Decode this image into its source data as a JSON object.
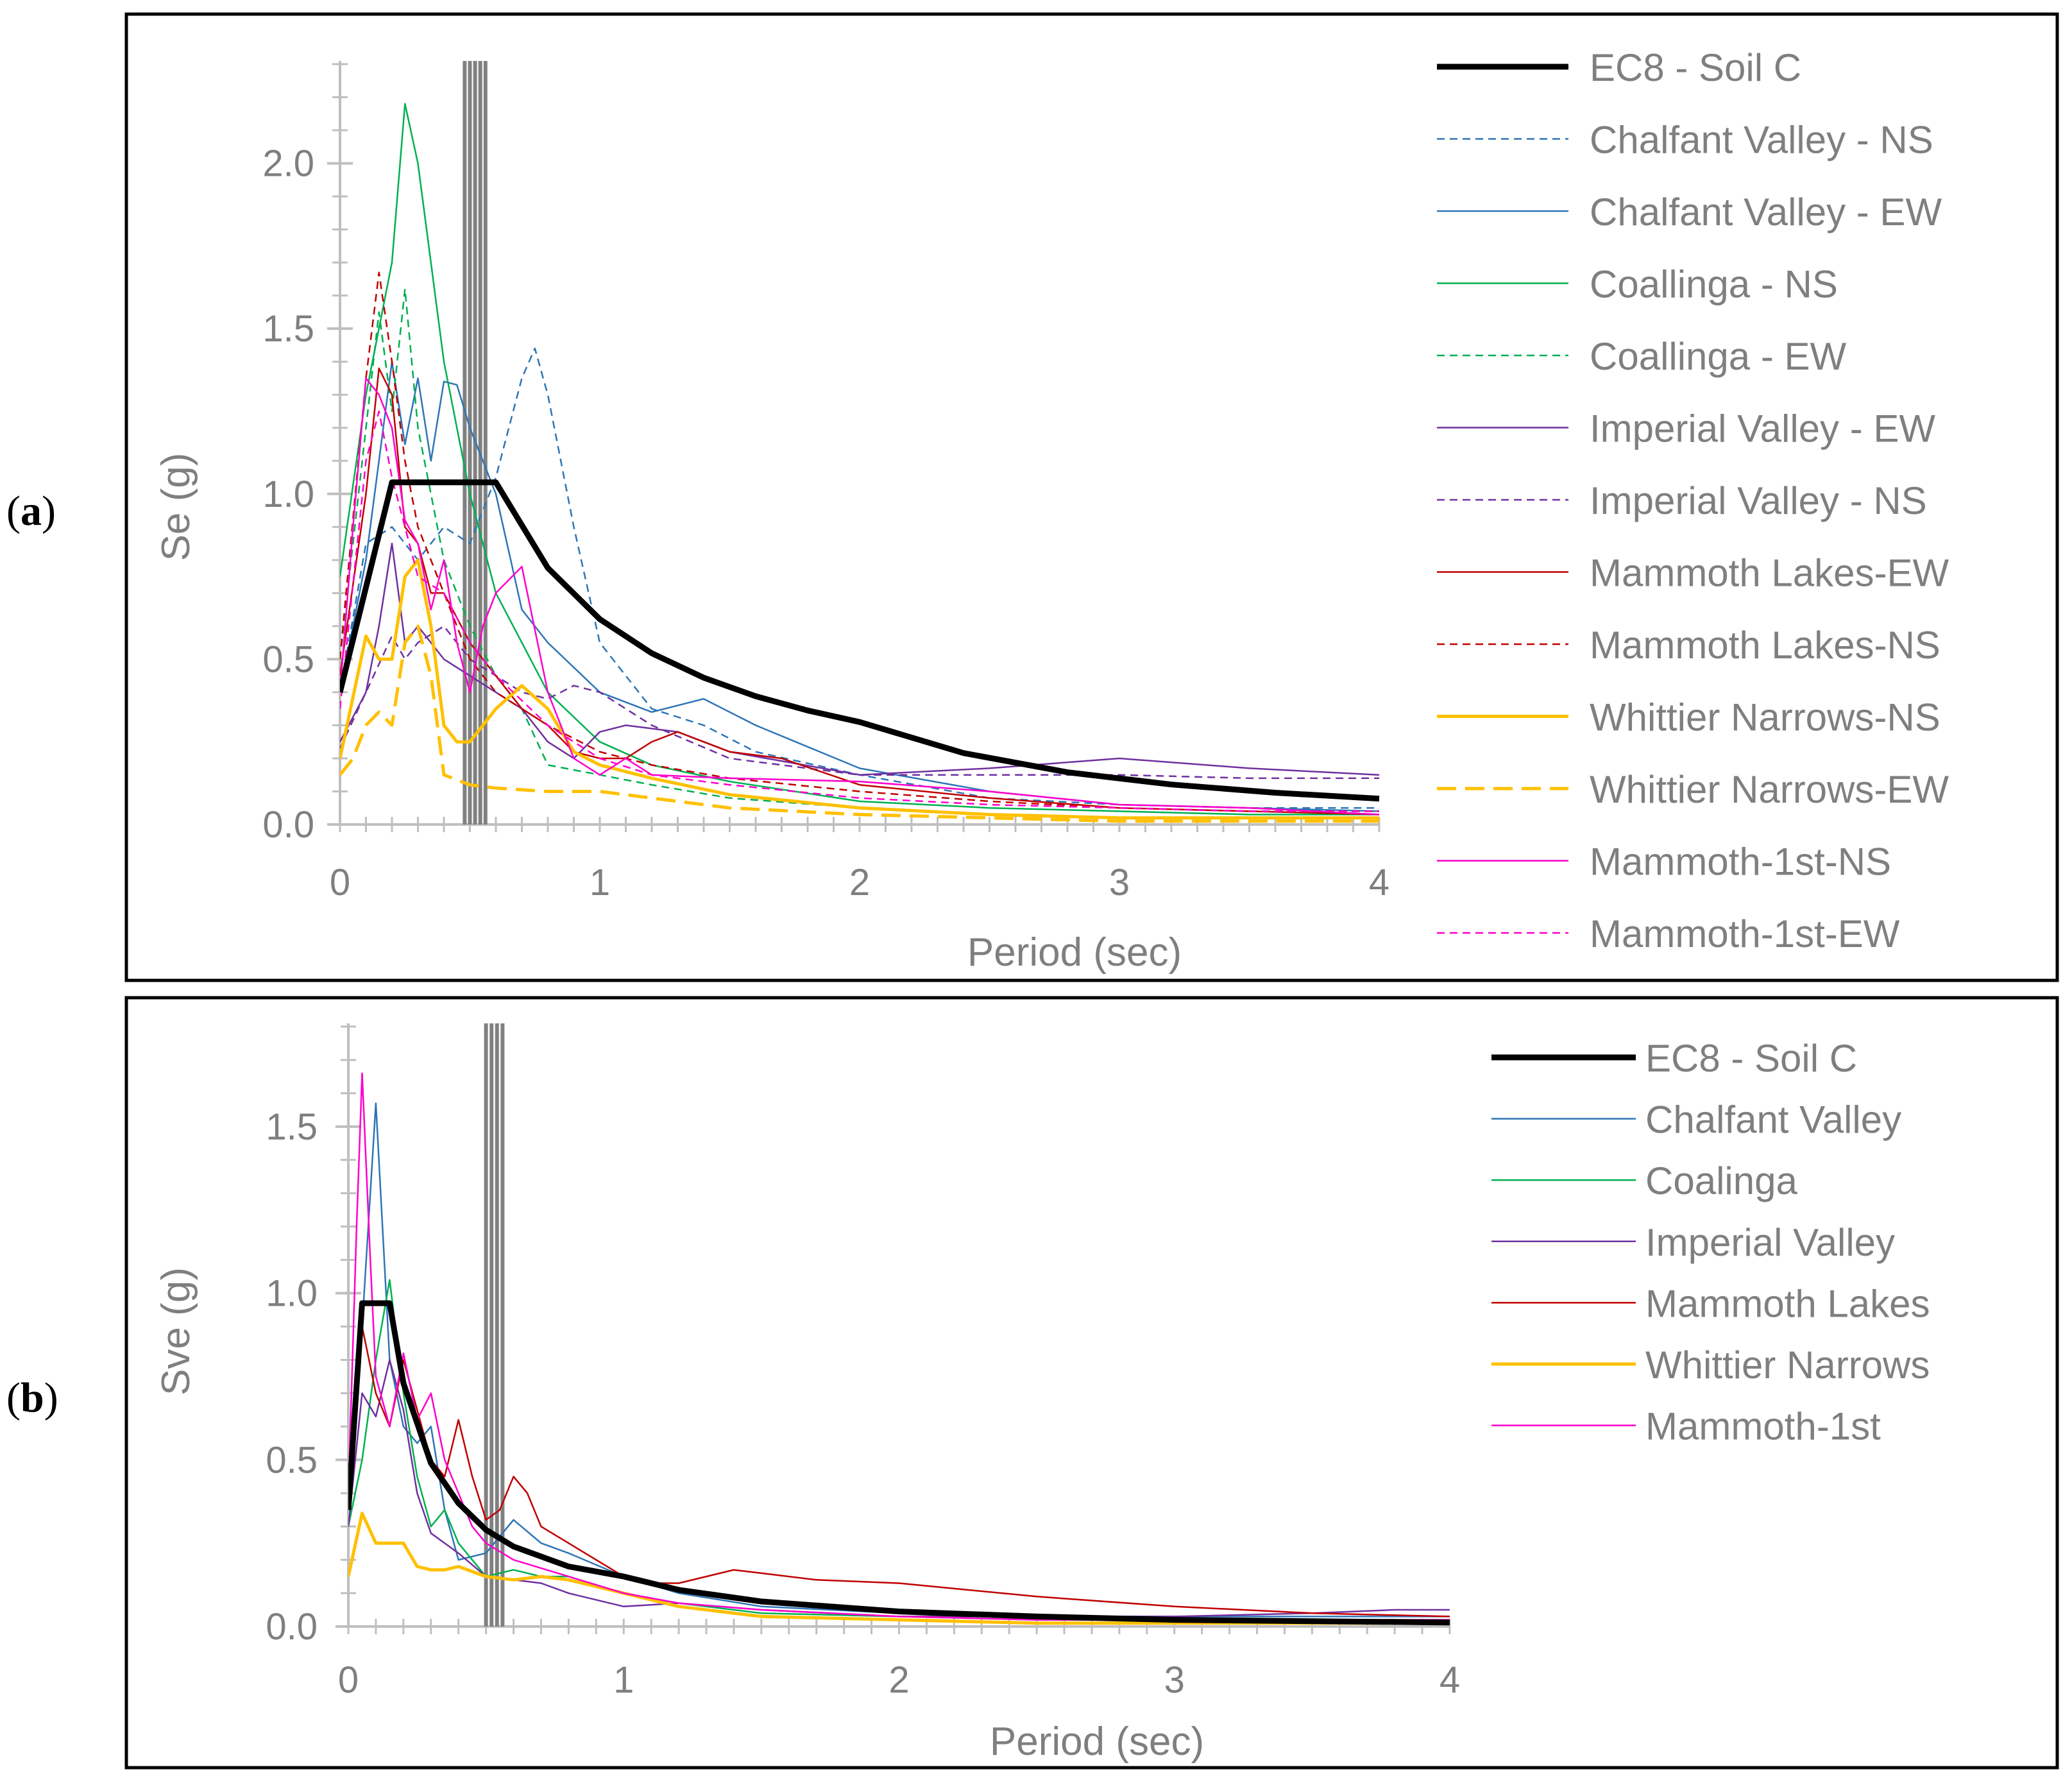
{
  "chart_data": [
    {
      "panel": "(a)",
      "type": "line",
      "xlabel": "Period (sec)",
      "ylabel": "Se (g)",
      "xlim": [
        0,
        4
      ],
      "ylim": [
        0,
        2.3
      ],
      "xticks": [
        0,
        1,
        2,
        3,
        4
      ],
      "yticks": [
        "0.0",
        "0.5",
        "1.0",
        "1.5",
        "2.0"
      ],
      "period_markers": [
        0.48,
        0.5,
        0.52,
        0.54,
        0.56
      ],
      "legend": "right",
      "series": [
        {
          "name": "EC8 - Soil C",
          "color": "#000000",
          "dash": "solid",
          "width": "bold",
          "x": [
            0,
            0.2,
            0.4,
            0.6,
            0.8,
            1.0,
            1.2,
            1.4,
            1.6,
            1.8,
            2.0,
            2.4,
            2.8,
            3.2,
            3.6,
            4.0
          ],
          "y": [
            0.4,
            1.035,
            1.035,
            1.035,
            0.776,
            0.621,
            0.518,
            0.444,
            0.388,
            0.345,
            0.31,
            0.216,
            0.158,
            0.121,
            0.096,
            0.078
          ]
        },
        {
          "name": "Chalfant Valley - NS",
          "color": "#2e75b6",
          "dash": "dashed",
          "width": "thin",
          "x": [
            0,
            0.1,
            0.2,
            0.3,
            0.4,
            0.5,
            0.6,
            0.7,
            0.75,
            0.8,
            0.9,
            1.0,
            1.2,
            1.4,
            1.6,
            2.0,
            2.5,
            3.0,
            3.5,
            4.0
          ],
          "y": [
            0.4,
            0.85,
            0.9,
            0.8,
            0.9,
            0.85,
            1.05,
            1.35,
            1.44,
            1.3,
            0.9,
            0.55,
            0.35,
            0.3,
            0.22,
            0.15,
            0.08,
            0.06,
            0.05,
            0.05
          ]
        },
        {
          "name": "Chalfant Valley - EW",
          "color": "#2e75b6",
          "dash": "solid",
          "width": "thin",
          "x": [
            0,
            0.1,
            0.2,
            0.25,
            0.3,
            0.35,
            0.4,
            0.45,
            0.5,
            0.6,
            0.7,
            0.8,
            1.0,
            1.2,
            1.4,
            1.6,
            2.0,
            2.5,
            3.0,
            3.5,
            4.0
          ],
          "y": [
            0.4,
            0.8,
            1.4,
            1.15,
            1.35,
            1.1,
            1.34,
            1.33,
            1.2,
            1.0,
            0.65,
            0.55,
            0.4,
            0.34,
            0.38,
            0.3,
            0.17,
            0.1,
            0.06,
            0.05,
            0.04
          ]
        },
        {
          "name": "Coallinga - NS",
          "color": "#00b050",
          "dash": "solid",
          "width": "thin",
          "x": [
            0,
            0.1,
            0.2,
            0.25,
            0.3,
            0.4,
            0.5,
            0.6,
            0.7,
            0.8,
            1.0,
            1.2,
            1.5,
            2.0,
            2.5,
            3.0,
            3.5,
            4.0
          ],
          "y": [
            0.75,
            1.3,
            1.7,
            2.18,
            2.0,
            1.4,
            1.0,
            0.7,
            0.55,
            0.4,
            0.25,
            0.18,
            0.13,
            0.07,
            0.05,
            0.04,
            0.03,
            0.03
          ]
        },
        {
          "name": "Coallinga - EW",
          "color": "#00b050",
          "dash": "dashed",
          "width": "thin",
          "x": [
            0,
            0.1,
            0.15,
            0.2,
            0.25,
            0.3,
            0.4,
            0.5,
            0.6,
            0.7,
            0.8,
            1.0,
            1.2,
            1.5,
            2.0,
            2.5,
            3.0,
            3.5,
            4.0
          ],
          "y": [
            0.5,
            1.2,
            1.55,
            1.25,
            1.62,
            1.2,
            0.8,
            0.6,
            0.45,
            0.35,
            0.18,
            0.15,
            0.12,
            0.08,
            0.05,
            0.03,
            0.02,
            0.02,
            0.02
          ]
        },
        {
          "name": "Imperial Valley - EW",
          "color": "#7030a0",
          "dash": "solid",
          "width": "thin",
          "x": [
            0,
            0.1,
            0.15,
            0.2,
            0.25,
            0.3,
            0.4,
            0.5,
            0.6,
            0.7,
            0.8,
            0.9,
            1.0,
            1.1,
            1.3,
            1.5,
            2.0,
            2.5,
            3.0,
            3.5,
            4.0
          ],
          "y": [
            0.25,
            0.4,
            0.6,
            0.85,
            0.55,
            0.6,
            0.5,
            0.45,
            0.4,
            0.35,
            0.25,
            0.2,
            0.28,
            0.3,
            0.28,
            0.22,
            0.15,
            0.17,
            0.2,
            0.17,
            0.15
          ]
        },
        {
          "name": "Imperial Valley - NS",
          "color": "#7030a0",
          "dash": "dashed",
          "width": "thin",
          "x": [
            0,
            0.1,
            0.2,
            0.25,
            0.3,
            0.4,
            0.5,
            0.6,
            0.7,
            0.8,
            0.9,
            1.0,
            1.2,
            1.5,
            2.0,
            2.5,
            3.0,
            3.5,
            4.0
          ],
          "y": [
            0.23,
            0.4,
            0.57,
            0.5,
            0.55,
            0.6,
            0.5,
            0.45,
            0.4,
            0.38,
            0.42,
            0.4,
            0.3,
            0.2,
            0.15,
            0.15,
            0.15,
            0.14,
            0.14
          ]
        },
        {
          "name": "Mammoth Lakes-EW",
          "color": "#c00000",
          "dash": "solid",
          "width": "thin",
          "x": [
            0,
            0.1,
            0.15,
            0.2,
            0.25,
            0.3,
            0.35,
            0.4,
            0.5,
            0.6,
            0.7,
            0.8,
            0.9,
            1.0,
            1.1,
            1.2,
            1.3,
            1.4,
            1.5,
            1.7,
            2.0,
            2.5,
            3.0,
            3.5,
            4.0
          ],
          "y": [
            0.45,
            1.0,
            1.38,
            1.3,
            0.9,
            0.85,
            0.7,
            0.7,
            0.55,
            0.45,
            0.35,
            0.3,
            0.22,
            0.2,
            0.2,
            0.25,
            0.28,
            0.25,
            0.22,
            0.2,
            0.12,
            0.08,
            0.05,
            0.04,
            0.03
          ]
        },
        {
          "name": "Mammoth Lakes-NS",
          "color": "#c00000",
          "dash": "dashed",
          "width": "thin",
          "x": [
            0,
            0.1,
            0.15,
            0.2,
            0.25,
            0.3,
            0.4,
            0.5,
            0.6,
            0.8,
            1.0,
            1.2,
            1.5,
            2.0,
            2.5,
            3.0,
            3.5,
            4.0
          ],
          "y": [
            0.5,
            1.35,
            1.67,
            1.4,
            1.1,
            0.9,
            0.7,
            0.5,
            0.4,
            0.3,
            0.22,
            0.18,
            0.14,
            0.1,
            0.07,
            0.05,
            0.04,
            0.04
          ]
        },
        {
          "name": "Whittier Narrows-NS",
          "color": "#ffc000",
          "dash": "solid",
          "width": "medium",
          "x": [
            0,
            0.1,
            0.15,
            0.2,
            0.25,
            0.3,
            0.35,
            0.4,
            0.45,
            0.5,
            0.6,
            0.7,
            0.8,
            0.9,
            1.0,
            1.2,
            1.5,
            2.0,
            2.5,
            3.0,
            3.5,
            4.0
          ],
          "y": [
            0.2,
            0.57,
            0.5,
            0.5,
            0.75,
            0.8,
            0.6,
            0.3,
            0.25,
            0.25,
            0.35,
            0.42,
            0.35,
            0.22,
            0.18,
            0.14,
            0.09,
            0.05,
            0.03,
            0.02,
            0.02,
            0.02
          ]
        },
        {
          "name": "Whittier Narrows-EW",
          "color": "#ffc000",
          "dash": "longdash",
          "width": "medium",
          "x": [
            0,
            0.05,
            0.1,
            0.15,
            0.2,
            0.25,
            0.3,
            0.35,
            0.4,
            0.5,
            0.6,
            0.8,
            1.0,
            1.2,
            1.5,
            2.0,
            2.5,
            3.0,
            3.5,
            4.0
          ],
          "y": [
            0.15,
            0.2,
            0.3,
            0.34,
            0.3,
            0.55,
            0.6,
            0.45,
            0.15,
            0.12,
            0.11,
            0.1,
            0.1,
            0.08,
            0.05,
            0.03,
            0.02,
            0.01,
            0.01,
            0.01
          ]
        },
        {
          "name": "Mammoth-1st-NS",
          "color": "#ff00cc",
          "dash": "solid",
          "width": "thin",
          "x": [
            0,
            0.05,
            0.1,
            0.15,
            0.2,
            0.25,
            0.3,
            0.35,
            0.4,
            0.45,
            0.5,
            0.55,
            0.6,
            0.7,
            0.8,
            0.9,
            1.0,
            1.1,
            1.2,
            1.5,
            2.0,
            2.5,
            3.0,
            3.5,
            4.0
          ],
          "y": [
            0.4,
            0.9,
            1.35,
            1.3,
            1.2,
            0.92,
            0.85,
            0.65,
            0.8,
            0.55,
            0.4,
            0.6,
            0.7,
            0.78,
            0.4,
            0.2,
            0.15,
            0.2,
            0.15,
            0.14,
            0.13,
            0.1,
            0.06,
            0.05,
            0.03
          ]
        },
        {
          "name": "Mammoth-1st-EW",
          "color": "#ff00cc",
          "dash": "dashed",
          "width": "thin",
          "x": [
            0,
            0.1,
            0.15,
            0.2,
            0.3,
            0.4,
            0.5,
            0.6,
            0.8,
            1.0,
            1.2,
            1.5,
            2.0,
            2.5,
            3.0,
            3.5,
            4.0
          ],
          "y": [
            0.35,
            1.1,
            1.25,
            1.05,
            0.75,
            0.7,
            0.55,
            0.45,
            0.3,
            0.2,
            0.15,
            0.12,
            0.08,
            0.06,
            0.05,
            0.04,
            0.04
          ]
        }
      ]
    },
    {
      "panel": "(b)",
      "type": "line",
      "xlabel": "Period (sec)",
      "ylabel": "Sve (g)",
      "xlim": [
        0,
        4
      ],
      "ylim": [
        0,
        1.8
      ],
      "xticks": [
        0,
        1,
        2,
        3,
        4
      ],
      "yticks": [
        "0.0",
        "0.5",
        "1.0",
        "1.5"
      ],
      "period_markers": [
        0.5,
        0.52,
        0.54,
        0.56
      ],
      "legend": "right",
      "series": [
        {
          "name": "EC8 - Soil C",
          "color": "#000000",
          "dash": "solid",
          "width": "bold",
          "x": [
            0,
            0.05,
            0.15,
            0.2,
            0.3,
            0.4,
            0.5,
            0.6,
            0.8,
            1.0,
            1.2,
            1.5,
            2.0,
            2.5,
            3.0,
            3.5,
            4.0
          ],
          "y": [
            0.35,
            0.97,
            0.97,
            0.73,
            0.49,
            0.37,
            0.29,
            0.24,
            0.18,
            0.15,
            0.11,
            0.075,
            0.045,
            0.03,
            0.02,
            0.016,
            0.012
          ]
        },
        {
          "name": "Chalfant Valley",
          "color": "#2e75b6",
          "dash": "solid",
          "width": "thin",
          "x": [
            0,
            0.05,
            0.1,
            0.15,
            0.2,
            0.25,
            0.3,
            0.35,
            0.4,
            0.5,
            0.6,
            0.7,
            0.8,
            1.0,
            1.2,
            1.5,
            2.0,
            2.5,
            3.0,
            3.5,
            4.0
          ],
          "y": [
            0.35,
            0.9,
            1.57,
            0.8,
            0.6,
            0.55,
            0.6,
            0.35,
            0.2,
            0.22,
            0.32,
            0.25,
            0.22,
            0.15,
            0.1,
            0.06,
            0.04,
            0.03,
            0.03,
            0.03,
            0.03
          ]
        },
        {
          "name": "Coalinga",
          "color": "#00b050",
          "dash": "solid",
          "width": "thin",
          "x": [
            0,
            0.05,
            0.1,
            0.15,
            0.2,
            0.25,
            0.3,
            0.35,
            0.4,
            0.5,
            0.6,
            0.7,
            0.8,
            1.0,
            1.2,
            1.5,
            2.0,
            2.5,
            3.0,
            3.5,
            4.0
          ],
          "y": [
            0.3,
            0.5,
            0.8,
            1.04,
            0.7,
            0.45,
            0.3,
            0.35,
            0.25,
            0.15,
            0.17,
            0.15,
            0.15,
            0.1,
            0.07,
            0.04,
            0.03,
            0.02,
            0.02,
            0.02,
            0.02
          ]
        },
        {
          "name": "Imperial Valley",
          "color": "#7030a0",
          "dash": "solid",
          "width": "thin",
          "x": [
            0,
            0.05,
            0.1,
            0.15,
            0.2,
            0.25,
            0.3,
            0.4,
            0.5,
            0.6,
            0.7,
            0.8,
            1.0,
            1.2,
            1.5,
            2.0,
            2.5,
            3.0,
            3.5,
            3.8,
            4.0
          ],
          "y": [
            0.3,
            0.7,
            0.63,
            0.8,
            0.65,
            0.4,
            0.28,
            0.22,
            0.15,
            0.14,
            0.13,
            0.1,
            0.06,
            0.07,
            0.05,
            0.03,
            0.03,
            0.03,
            0.04,
            0.05,
            0.05
          ]
        },
        {
          "name": "Mammoth Lakes",
          "color": "#c00000",
          "dash": "solid",
          "width": "thin",
          "x": [
            0,
            0.05,
            0.1,
            0.15,
            0.2,
            0.25,
            0.3,
            0.35,
            0.4,
            0.45,
            0.5,
            0.55,
            0.6,
            0.65,
            0.7,
            0.8,
            0.9,
            1.0,
            1.1,
            1.2,
            1.3,
            1.4,
            1.5,
            1.7,
            2.0,
            2.5,
            3.0,
            3.5,
            4.0
          ],
          "y": [
            0.4,
            0.9,
            0.7,
            0.6,
            0.8,
            0.65,
            0.5,
            0.45,
            0.62,
            0.45,
            0.32,
            0.35,
            0.45,
            0.4,
            0.3,
            0.25,
            0.2,
            0.15,
            0.13,
            0.13,
            0.15,
            0.17,
            0.16,
            0.14,
            0.13,
            0.09,
            0.06,
            0.04,
            0.03
          ]
        },
        {
          "name": "Whittier Narrows",
          "color": "#ffc000",
          "dash": "solid",
          "width": "medium",
          "x": [
            0,
            0.05,
            0.1,
            0.15,
            0.2,
            0.25,
            0.3,
            0.35,
            0.4,
            0.5,
            0.6,
            0.7,
            0.8,
            1.0,
            1.2,
            1.5,
            2.0,
            2.5,
            3.0,
            3.5,
            4.0
          ],
          "y": [
            0.15,
            0.34,
            0.25,
            0.25,
            0.25,
            0.18,
            0.17,
            0.17,
            0.18,
            0.15,
            0.14,
            0.15,
            0.14,
            0.1,
            0.06,
            0.03,
            0.02,
            0.01,
            0.01,
            0.01,
            0.01
          ]
        },
        {
          "name": "Mammoth-1st",
          "color": "#ff00cc",
          "dash": "solid",
          "width": "thin",
          "x": [
            0,
            0.03,
            0.05,
            0.08,
            0.1,
            0.15,
            0.2,
            0.25,
            0.3,
            0.35,
            0.4,
            0.45,
            0.5,
            0.6,
            0.8,
            1.0,
            1.2,
            1.5,
            2.0,
            2.5,
            3.0,
            3.5,
            4.0
          ],
          "y": [
            0.4,
            1.2,
            1.66,
            1.1,
            0.75,
            0.6,
            0.82,
            0.62,
            0.7,
            0.5,
            0.4,
            0.3,
            0.25,
            0.2,
            0.15,
            0.1,
            0.07,
            0.05,
            0.03,
            0.02,
            0.02,
            0.02,
            0.02
          ]
        }
      ]
    }
  ]
}
